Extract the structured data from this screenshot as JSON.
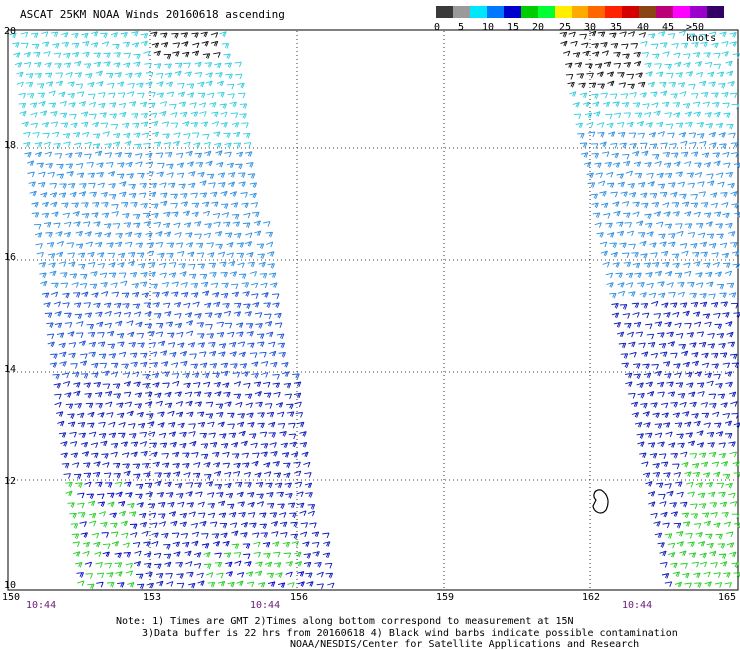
{
  "title": "ASCAT 25KM NOAA Winds 20160618 ascending",
  "scale": {
    "labels": [
      "0",
      "5",
      "10",
      "15",
      "20",
      "25",
      "30",
      "35",
      "40",
      "45",
      ">50 knots"
    ],
    "colors": [
      "#3a3a3a",
      "#9a9a9a",
      "#00e6ff",
      "#0077ff",
      "#0000cc",
      "#00cc00",
      "#00ff33",
      "#ffee00",
      "#ffaa00",
      "#ff6600",
      "#ff2200",
      "#d40000",
      "#8b4513",
      "#bb0077",
      "#ff00ff",
      "#9900cc",
      "#330066"
    ]
  },
  "lat_labels": [
    "20",
    "18",
    "16",
    "14",
    "12",
    "10"
  ],
  "lon_labels": [
    "150",
    "153",
    "156",
    "159",
    "162",
    "165"
  ],
  "time_labels": [
    "10:44",
    "10:44",
    "10:44"
  ],
  "note": {
    "line1": "Note: 1) Times are GMT 2)Times along bottom correspond to measurement at 15N",
    "line2": "3)Data buffer is 22 hrs from 20160618 4) Black wind barbs indicate possible contamination",
    "line3": "NOAA/NESDIS/Center for Satellite Applications and Research"
  }
}
